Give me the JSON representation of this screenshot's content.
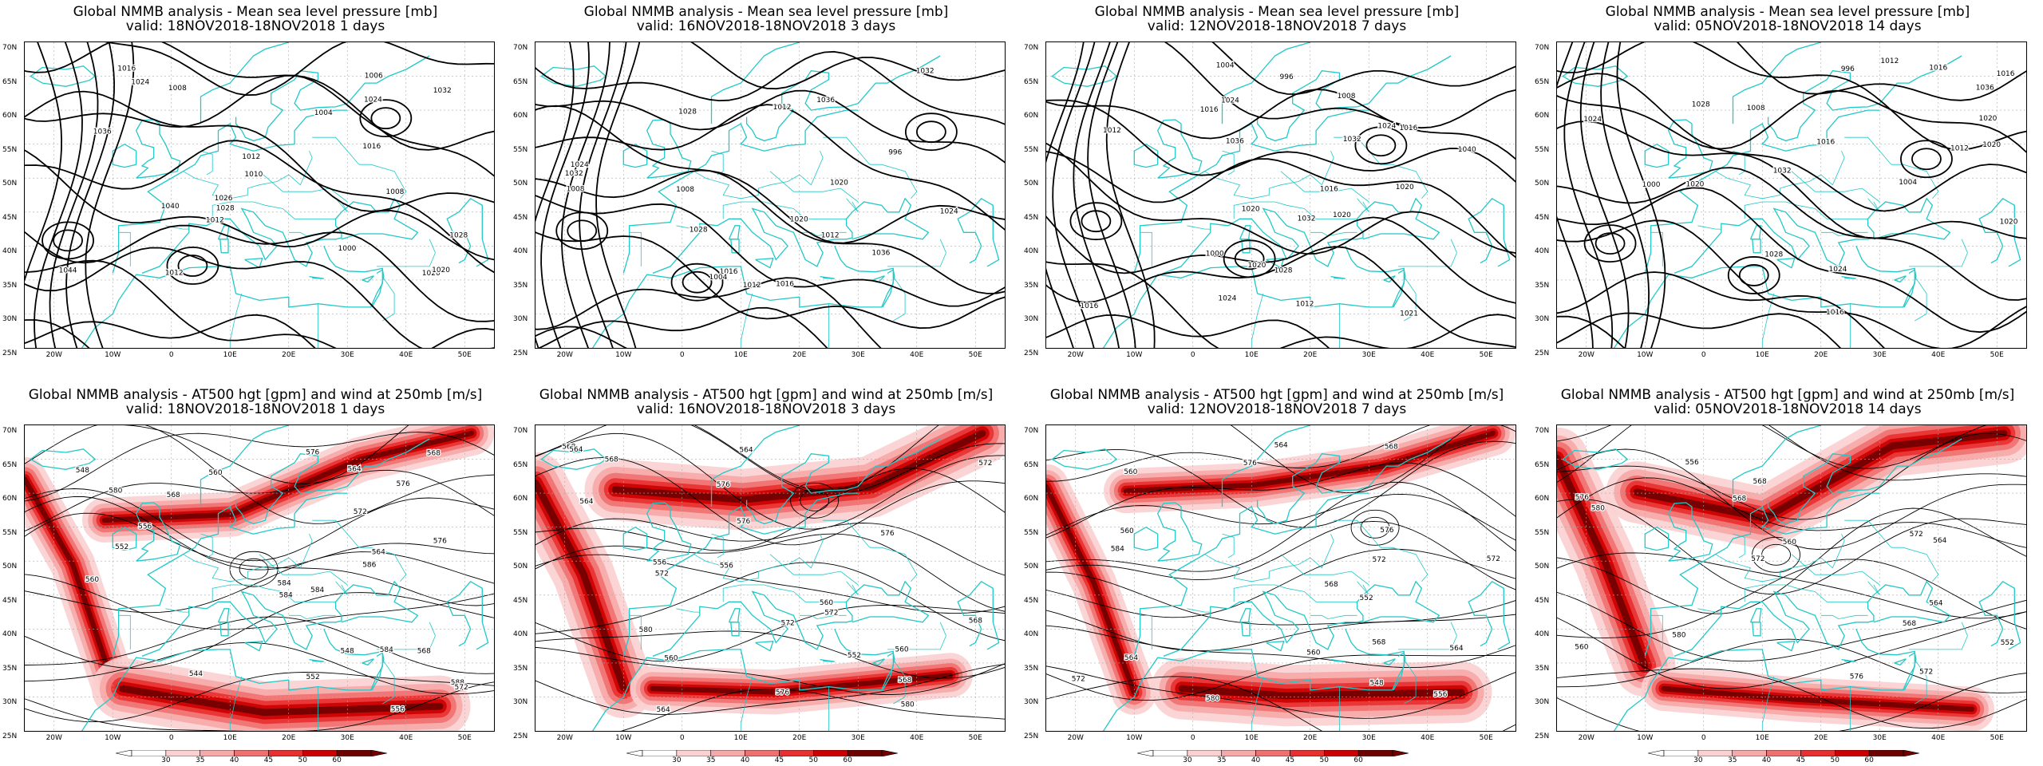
{
  "colors": {
    "coastline": "#22c8c8",
    "contour": "#000000",
    "grid": "#aaaaaa",
    "wind_shades": [
      "#ffffff",
      "#fbd0d0",
      "#f7a8a8",
      "#f07070",
      "#e83030",
      "#cc0000",
      "#6e0000"
    ]
  },
  "axes": {
    "lat_labels": [
      "70N",
      "65N",
      "60N",
      "55N",
      "50N",
      "45N",
      "40N",
      "35N",
      "30N",
      "25N"
    ],
    "lon_labels": [
      "20W",
      "10W",
      "0",
      "10E",
      "20E",
      "30E",
      "40E",
      "50E"
    ]
  },
  "colorbar_labels": [
    "30",
    "35",
    "40",
    "45",
    "50",
    "60"
  ],
  "panels": [
    {
      "id": "mslp-1d",
      "kind": "mslp",
      "title": "Global NMMB analysis - Mean sea level pressure [mb]",
      "valid": "valid: 18NOV2018-18NOV2018   1 days",
      "contour_labels": [
        "1044",
        "1040",
        "1036",
        "1032",
        "1028",
        "1024",
        "1020",
        "1016",
        "1012",
        "1008",
        "1004",
        "1000",
        "1010",
        "1026",
        "1024",
        "1006",
        "1012",
        "1008",
        "1012",
        "1020",
        "1016",
        "1028"
      ]
    },
    {
      "id": "mslp-3d",
      "kind": "mslp",
      "title": "Global NMMB analysis - Mean sea level pressure [mb]",
      "valid": "valid: 16NOV2018-18NOV2018   3 days",
      "contour_labels": [
        "1028",
        "1032",
        "1036",
        "1036",
        "1032",
        "1028",
        "1024",
        "1020",
        "1016",
        "1012",
        "1008",
        "1004",
        "996",
        "1016",
        "1020",
        "1024",
        "1012",
        "1008",
        "1012"
      ]
    },
    {
      "id": "mslp-7d",
      "kind": "mslp",
      "title": "Global NMMB analysis - Mean sea level pressure [mb]",
      "valid": "valid: 12NOV2018-18NOV2018   7 days",
      "contour_labels": [
        "1016",
        "1020",
        "1024",
        "1016",
        "1032",
        "1036",
        "1040",
        "1032",
        "1028",
        "1024",
        "1020",
        "1016",
        "1012",
        "1008",
        "1004",
        "1000",
        "996",
        "1020",
        "1021",
        "1024",
        "1020",
        "1016",
        "1012"
      ]
    },
    {
      "id": "mslp-14d",
      "kind": "mslp",
      "title": "Global NMMB analysis - Mean sea level pressure [mb]",
      "valid": "valid: 05NOV2018-18NOV2018   14 days",
      "contour_labels": [
        "1012",
        "1016",
        "1020",
        "1024",
        "1028",
        "1032",
        "1036",
        "1028",
        "1024",
        "1020",
        "1016",
        "1012",
        "1008",
        "1004",
        "1000",
        "996",
        "1016",
        "1020",
        "1020",
        "1016"
      ]
    },
    {
      "id": "z500-1d",
      "kind": "z500",
      "title": "Global NMMB analysis - AT500 hgt [gpm] and wind at 250mb [m/s]",
      "valid": "valid: 18NOV2018-18NOV2018   1 days",
      "contour_labels": [
        "580",
        "584",
        "576",
        "572",
        "568",
        "584",
        "588",
        "544",
        "548",
        "552",
        "556",
        "560",
        "564",
        "568",
        "572",
        "576",
        "584",
        "586",
        "560",
        "556",
        "548",
        "552",
        "564",
        "568",
        "584",
        "576"
      ]
    },
    {
      "id": "z500-3d",
      "kind": "z500",
      "title": "Global NMMB analysis - AT500 hgt [gpm] and wind at 250mb [m/s]",
      "valid": "valid: 16NOV2018-18NOV2018   3 days",
      "contour_labels": [
        "564",
        "568",
        "572",
        "576",
        "576",
        "572",
        "568",
        "564",
        "560",
        "556",
        "560",
        "564",
        "568",
        "572",
        "576",
        "580",
        "552",
        "556",
        "560",
        "564",
        "568",
        "572",
        "576",
        "580"
      ]
    },
    {
      "id": "z500-7d",
      "kind": "z500",
      "title": "Global NMMB analysis - AT500 hgt [gpm] and wind at 250mb [m/s]",
      "valid": "valid: 12NOV2018-18NOV2018   7 days",
      "contour_labels": [
        "548",
        "552",
        "556",
        "560",
        "564",
        "568",
        "572",
        "560",
        "564",
        "568",
        "572",
        "576",
        "580",
        "584",
        "560",
        "564",
        "568",
        "572",
        "576"
      ]
    },
    {
      "id": "z500-14d",
      "kind": "z500",
      "title": "Global NMMB analysis - AT500 hgt [gpm] and wind at 250mb [m/s]",
      "valid": "valid: 05NOV2018-18NOV2018   14 days",
      "contour_labels": [
        "552",
        "556",
        "560",
        "564",
        "568",
        "572",
        "576",
        "580",
        "560",
        "564",
        "568",
        "572",
        "576",
        "580",
        "568",
        "572"
      ]
    }
  ]
}
